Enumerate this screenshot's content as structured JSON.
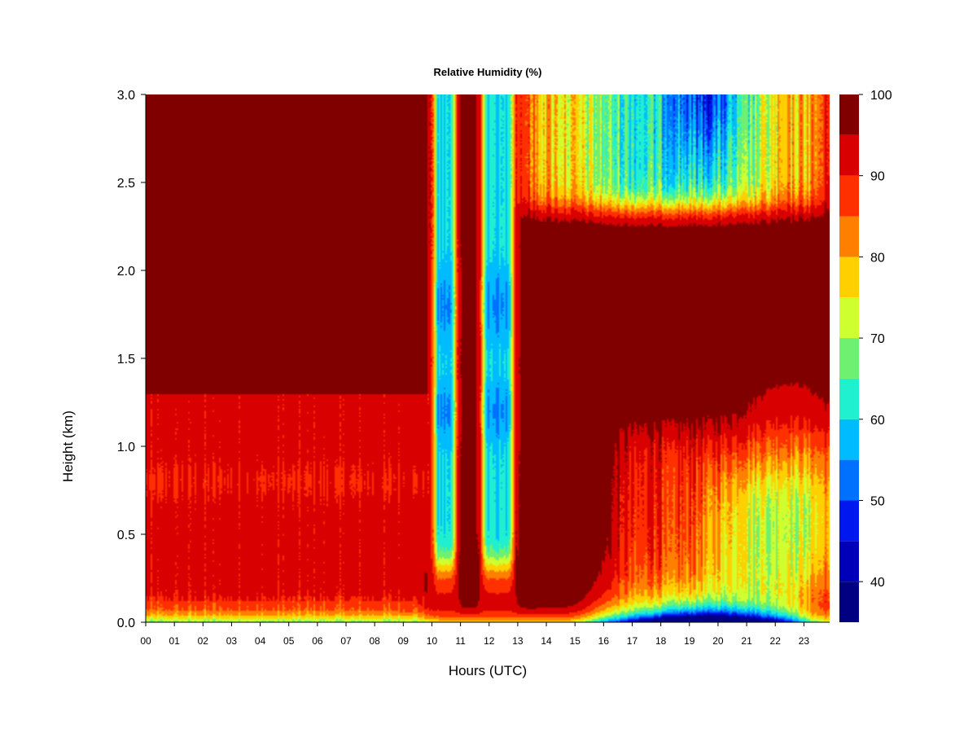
{
  "chart_data": {
    "type": "heatmap",
    "title": "Relative Humidity (%)",
    "xlabel": "Hours (UTC)",
    "ylabel": "Height (km)",
    "x_tick_labels": [
      "00",
      "01",
      "02",
      "03",
      "04",
      "05",
      "06",
      "07",
      "08",
      "09",
      "10",
      "11",
      "12",
      "13",
      "14",
      "15",
      "16",
      "17",
      "18",
      "19",
      "20",
      "21",
      "22",
      "23"
    ],
    "y_tick_labels": [
      "0.0",
      "0.5",
      "1.0",
      "1.5",
      "2.0",
      "2.5",
      "3.0"
    ],
    "xlim": [
      0,
      23.9
    ],
    "ylim": [
      0,
      3.0
    ],
    "colorbar": {
      "min": 35,
      "max": 100,
      "tick_labels": [
        "40",
        "50",
        "60",
        "70",
        "80",
        "90",
        "100"
      ],
      "tick_values": [
        40,
        50,
        60,
        70,
        80,
        90,
        100
      ],
      "levels": [
        35,
        40,
        45,
        50,
        55,
        60,
        65,
        70,
        75,
        80,
        85,
        90,
        95,
        100
      ],
      "colors": [
        "#000080",
        "#0000b8",
        "#0018f0",
        "#0070ff",
        "#00bcff",
        "#20f0d0",
        "#70f070",
        "#d0ff30",
        "#ffd000",
        "#ff8000",
        "#ff3000",
        "#d80000",
        "#800000"
      ]
    },
    "features": [
      {
        "name": "low-level moist layer",
        "x": [
          0,
          9.8
        ],
        "y": [
          0.0,
          1.3
        ],
        "rh": 90
      },
      {
        "name": "surface dry band",
        "x": [
          0,
          24
        ],
        "y": [
          0.0,
          0.1
        ],
        "rh": 72
      },
      {
        "name": "dry column A",
        "x": [
          10.0,
          10.9
        ],
        "y": [
          0.4,
          3.0
        ],
        "rh": 58
      },
      {
        "name": "dry column B",
        "x": [
          11.8,
          12.9
        ],
        "y": [
          0.4,
          3.0
        ],
        "rh": 55
      },
      {
        "name": "upper dry layer",
        "x": [
          13.2,
          23.8
        ],
        "y": [
          2.3,
          3.0
        ],
        "rh": 70
      },
      {
        "name": "afternoon mid layer",
        "x": [
          16.5,
          23.8
        ],
        "y": [
          0.4,
          1.2
        ],
        "rh": 82
      },
      {
        "name": "evening near-surface dry pocket",
        "x": [
          17.0,
          22.2
        ],
        "y": [
          0.0,
          0.2
        ],
        "rh": 42
      }
    ]
  }
}
